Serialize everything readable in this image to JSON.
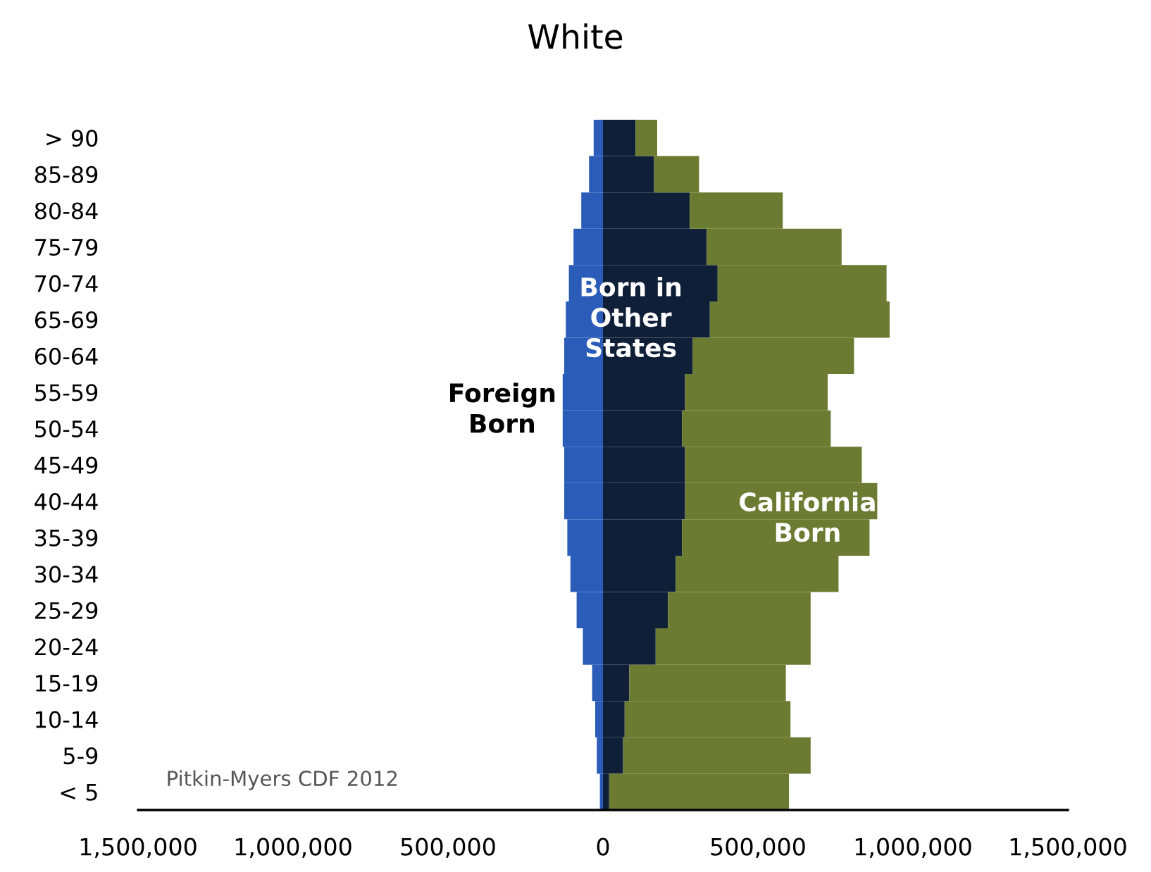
{
  "chart_data": {
    "type": "bar",
    "orientation": "horizontal",
    "stacked": true,
    "title": "White",
    "categories": [
      "> 90",
      "85-89",
      "80-84",
      "75-79",
      "70-74",
      "65-69",
      "60-64",
      "55-59",
      "50-54",
      "45-49",
      "40-44",
      "35-39",
      "30-34",
      "25-29",
      "20-24",
      "15-19",
      "10-14",
      "5-9",
      "< 5"
    ],
    "series": [
      {
        "name": "Foreign Born",
        "color": "#2a5cb8",
        "values": [
          -30000,
          -45000,
          -70000,
          -95000,
          -110000,
          -120000,
          -125000,
          -130000,
          -130000,
          -125000,
          -125000,
          -115000,
          -105000,
          -85000,
          -65000,
          -35000,
          -25000,
          -20000,
          -10000
        ]
      },
      {
        "name": "Born in Other States",
        "color": "#101f38",
        "values": [
          105000,
          165000,
          280000,
          335000,
          370000,
          345000,
          290000,
          265000,
          255000,
          265000,
          265000,
          255000,
          235000,
          210000,
          170000,
          85000,
          70000,
          65000,
          20000
        ]
      },
      {
        "name": "California Born",
        "color": "#6b7b31",
        "values": [
          70000,
          145000,
          300000,
          435000,
          545000,
          580000,
          520000,
          460000,
          480000,
          570000,
          620000,
          605000,
          525000,
          460000,
          500000,
          505000,
          535000,
          605000,
          580000
        ]
      }
    ],
    "xlim": [
      -1500000,
      1500000
    ],
    "xticks": [
      {
        "value": -1500000,
        "label": "1,500,000"
      },
      {
        "value": -1000000,
        "label": "1,000,000"
      },
      {
        "value": -500000,
        "label": "500,000"
      },
      0,
      {
        "value": 500000,
        "label": "500,000"
      },
      {
        "value": 1000000,
        "label": "1,000,000"
      },
      {
        "value": 1500000,
        "label": "1,500,000"
      }
    ],
    "grid": false,
    "legend": false,
    "annotations": [
      "Pitkin-Myers CDF 2012"
    ]
  }
}
